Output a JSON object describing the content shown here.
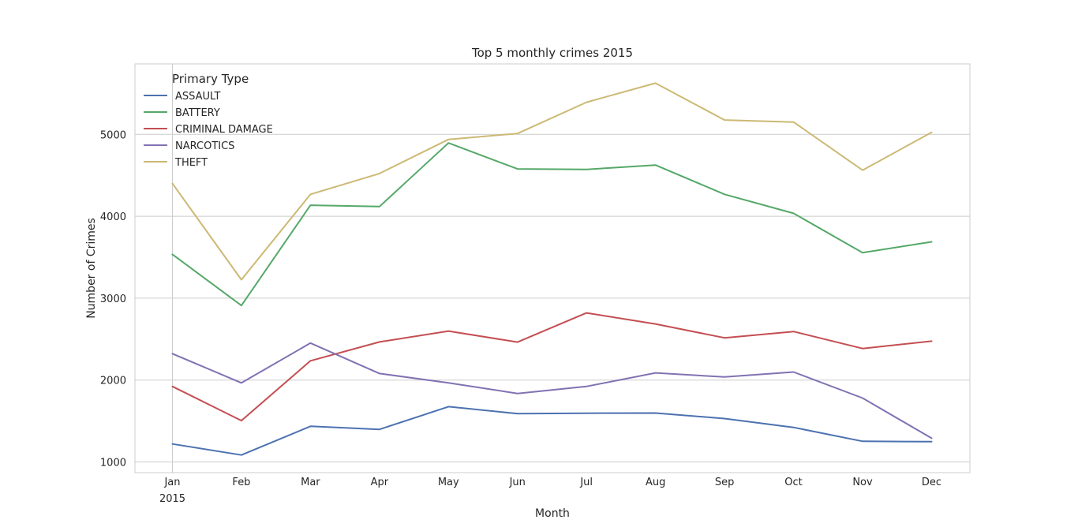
{
  "chart_data": {
    "type": "line",
    "title": "Top 5 monthly crimes 2015",
    "xlabel": "Month",
    "ylabel": "Number of Crimes",
    "categories": [
      "Jan",
      "Feb",
      "Mar",
      "Apr",
      "May",
      "Jun",
      "Jul",
      "Aug",
      "Sep",
      "Oct",
      "Nov",
      "Dec"
    ],
    "first_tick_year": "2015",
    "ylim": [
      870,
      5860
    ],
    "yticks": [
      1000,
      2000,
      3000,
      4000,
      5000
    ],
    "grid": true,
    "legend": {
      "title": "Primary Type",
      "placement": "top-left"
    },
    "series": [
      {
        "name": "ASSAULT",
        "color": "#4c72b0",
        "values": [
          1220,
          1085,
          1435,
          1398,
          1675,
          1590,
          1595,
          1597,
          1530,
          1422,
          1252,
          1248
        ]
      },
      {
        "name": "BATTERY",
        "color": "#55a868",
        "values": [
          3535,
          2910,
          4135,
          4118,
          4895,
          4578,
          4572,
          4625,
          4268,
          4035,
          3555,
          3688
        ]
      },
      {
        "name": "CRIMINAL DAMAGE",
        "color": "#c44e52",
        "values": [
          1922,
          1505,
          2235,
          2465,
          2598,
          2463,
          2820,
          2685,
          2515,
          2592,
          2385,
          2475
        ]
      },
      {
        "name": "NARCOTICS",
        "color": "#8172b2",
        "values": [
          2322,
          1965,
          2452,
          2080,
          1966,
          1836,
          1922,
          2088,
          2038,
          2098,
          1780,
          1290
        ]
      },
      {
        "name": "THEFT",
        "color": "#ccb974",
        "values": [
          4400,
          3225,
          4268,
          4522,
          4938,
          5010,
          5392,
          5625,
          5175,
          5150,
          4562,
          5025
        ]
      }
    ]
  }
}
